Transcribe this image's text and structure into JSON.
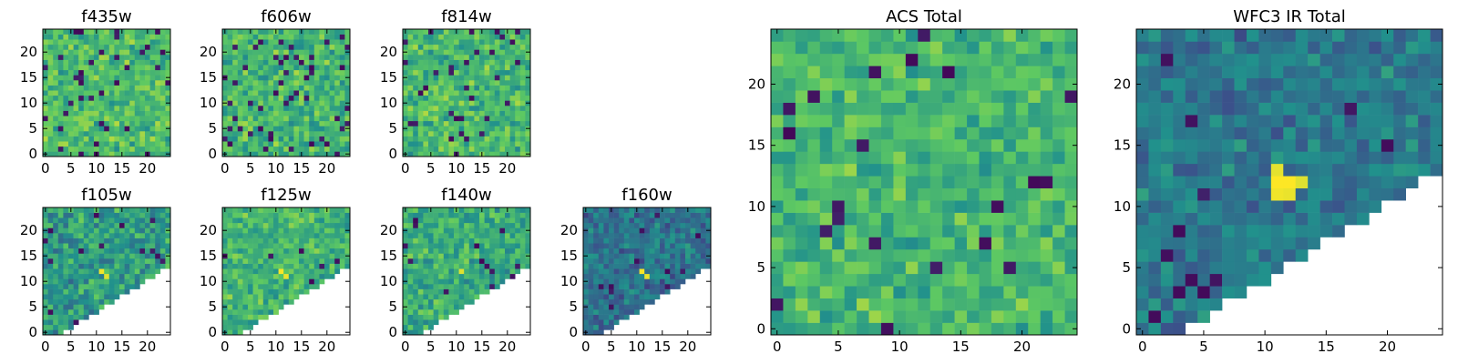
{
  "chart_data": {
    "type": "heatmap",
    "grid_size": 25,
    "colormap": "viridis",
    "colormap_stops": [
      "#440154",
      "#3b528b",
      "#21918c",
      "#5ec962",
      "#fde725"
    ],
    "masked_color": "#ffffff",
    "panels": [
      {
        "title": "f435w",
        "xticks": [
          0,
          5,
          10,
          15,
          20
        ],
        "yticks": [
          0,
          5,
          10,
          15,
          20
        ],
        "mask": "none",
        "mean": 0.68,
        "spread": 0.14,
        "seed": 11,
        "dark_fraction": 0.05,
        "hotspots": []
      },
      {
        "title": "f606w",
        "xticks": [
          0,
          5,
          10,
          15,
          20
        ],
        "yticks": [
          0,
          5,
          10,
          15,
          20
        ],
        "mask": "none",
        "mean": 0.66,
        "spread": 0.15,
        "seed": 23,
        "dark_fraction": 0.06,
        "hotspots": []
      },
      {
        "title": "f814w",
        "xticks": [
          0,
          5,
          10,
          15,
          20
        ],
        "yticks": [
          0,
          5,
          10,
          15,
          20
        ],
        "mask": "none",
        "mean": 0.67,
        "spread": 0.15,
        "seed": 37,
        "dark_fraction": 0.06,
        "hotspots": []
      },
      {
        "title": "f105w",
        "xticks": [
          0,
          5,
          10,
          15,
          20
        ],
        "yticks": [
          0,
          5,
          10,
          15,
          20
        ],
        "mask": "diagonal",
        "mean": 0.55,
        "spread": 0.16,
        "seed": 41,
        "dark_fraction": 0.03,
        "hotspots": [
          {
            "x": 11,
            "y": 12,
            "v": 0.98
          },
          {
            "x": 12,
            "y": 11,
            "v": 0.95
          }
        ]
      },
      {
        "title": "f125w",
        "xticks": [
          0,
          5,
          10,
          15,
          20
        ],
        "yticks": [
          0,
          5,
          10,
          15,
          20
        ],
        "mask": "diagonal",
        "mean": 0.65,
        "spread": 0.14,
        "seed": 53,
        "dark_fraction": 0.02,
        "hotspots": [
          {
            "x": 11,
            "y": 12,
            "v": 0.99
          },
          {
            "x": 12,
            "y": 11,
            "v": 0.97
          },
          {
            "x": 17,
            "y": 10,
            "v": 0.02
          }
        ]
      },
      {
        "title": "f140w",
        "xticks": [
          0,
          5,
          10,
          15,
          20
        ],
        "yticks": [
          0,
          5,
          10,
          15,
          20
        ],
        "mask": "diagonal",
        "mean": 0.62,
        "spread": 0.14,
        "seed": 67,
        "dark_fraction": 0.02,
        "hotspots": [
          {
            "x": 15,
            "y": 14,
            "v": 0.02
          },
          {
            "x": 16,
            "y": 13,
            "v": 0.05
          },
          {
            "x": 11,
            "y": 12,
            "v": 0.95
          }
        ]
      },
      {
        "title": "f160w",
        "xticks": [
          0,
          5,
          10,
          15,
          20
        ],
        "yticks": [
          0,
          5,
          10,
          15,
          20
        ],
        "mask": "diagonal",
        "mean": 0.38,
        "spread": 0.13,
        "seed": 79,
        "dark_fraction": 0.03,
        "hotspots": [
          {
            "x": 11,
            "y": 12,
            "v": 0.99
          },
          {
            "x": 12,
            "y": 11,
            "v": 0.97
          }
        ]
      },
      {
        "title": "ACS Total",
        "xticks": [
          0,
          5,
          10,
          15,
          20
        ],
        "yticks": [
          0,
          5,
          10,
          15,
          20
        ],
        "mask": "none",
        "mean": 0.66,
        "spread": 0.13,
        "seed": 97,
        "dark_fraction": 0.05,
        "hotspots": []
      },
      {
        "title": "WFC3 IR Total",
        "xticks": [
          0,
          5,
          10,
          15,
          20
        ],
        "yticks": [
          0,
          5,
          10,
          15,
          20
        ],
        "mask": "diagonal",
        "mean": 0.4,
        "spread": 0.12,
        "seed": 113,
        "dark_fraction": 0.03,
        "hotspots": [
          {
            "x": 11,
            "y": 12,
            "v": 1.0
          },
          {
            "x": 12,
            "y": 12,
            "v": 1.0
          },
          {
            "x": 11,
            "y": 11,
            "v": 0.98
          },
          {
            "x": 12,
            "y": 11,
            "v": 0.97
          },
          {
            "x": 13,
            "y": 12,
            "v": 0.95
          },
          {
            "x": 11,
            "y": 13,
            "v": 0.96
          }
        ]
      }
    ]
  }
}
